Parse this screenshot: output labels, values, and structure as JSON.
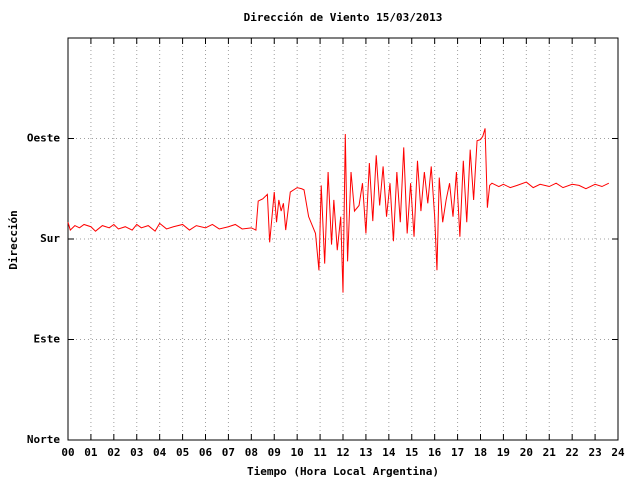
{
  "chart_data": {
    "type": "line",
    "title": "Dirección de Viento 15/03/2013",
    "x_label": "Tiempo (Hora Local Argentina)",
    "y_label": "Dirección",
    "xlim": [
      0,
      24
    ],
    "xticks": [
      {
        "value": 0,
        "label": "00"
      },
      {
        "value": 1,
        "label": "01"
      },
      {
        "value": 2,
        "label": "02"
      },
      {
        "value": 3,
        "label": "03"
      },
      {
        "value": 4,
        "label": "04"
      },
      {
        "value": 5,
        "label": "05"
      },
      {
        "value": 6,
        "label": "06"
      },
      {
        "value": 7,
        "label": "07"
      },
      {
        "value": 8,
        "label": "08"
      },
      {
        "value": 9,
        "label": "09"
      },
      {
        "value": 10,
        "label": "10"
      },
      {
        "value": 11,
        "label": "11"
      },
      {
        "value": 12,
        "label": "12"
      },
      {
        "value": 13,
        "label": "13"
      },
      {
        "value": 14,
        "label": "14"
      },
      {
        "value": 15,
        "label": "15"
      },
      {
        "value": 16,
        "label": "16"
      },
      {
        "value": 17,
        "label": "17"
      },
      {
        "value": 18,
        "label": "18"
      },
      {
        "value": 19,
        "label": "19"
      },
      {
        "value": 20,
        "label": "20"
      },
      {
        "value": 21,
        "label": "21"
      },
      {
        "value": 22,
        "label": "22"
      },
      {
        "value": 23,
        "label": "23"
      },
      {
        "value": 24,
        "label": "24"
      }
    ],
    "ylim": [
      0,
      360
    ],
    "yticks": [
      {
        "value": 0,
        "label": "Norte"
      },
      {
        "value": 90,
        "label": "Este"
      },
      {
        "value": 180,
        "label": "Sur"
      },
      {
        "value": 270,
        "label": "Oeste"
      }
    ],
    "grid": true,
    "x": [
      0,
      0.1,
      0.3,
      0.5,
      0.7,
      1,
      1.2,
      1.5,
      1.8,
      2,
      2.2,
      2.5,
      2.8,
      3,
      3.2,
      3.5,
      3.8,
      4,
      4.3,
      4.6,
      5,
      5.3,
      5.6,
      6,
      6.3,
      6.6,
      7,
      7.3,
      7.6,
      8,
      8.2,
      8.3,
      8.5,
      8.7,
      8.8,
      9,
      9.1,
      9.2,
      9.3,
      9.4,
      9.5,
      9.7,
      10,
      10.2,
      10.3,
      10.5,
      10.8,
      10.95,
      11.05,
      11.2,
      11.35,
      11.5,
      11.6,
      11.75,
      11.9,
      12.0,
      12.1,
      12.2,
      12.35,
      12.5,
      12.7,
      12.85,
      13.0,
      13.15,
      13.3,
      13.45,
      13.6,
      13.75,
      13.9,
      14.05,
      14.2,
      14.35,
      14.5,
      14.65,
      14.8,
      14.95,
      15.1,
      15.25,
      15.4,
      15.55,
      15.7,
      15.85,
      16.0,
      16.1,
      16.2,
      16.35,
      16.5,
      16.65,
      16.8,
      16.95,
      17.1,
      17.25,
      17.4,
      17.55,
      17.7,
      17.85,
      18.0,
      18.1,
      18.2,
      18.3,
      18.4,
      18.5,
      18.8,
      19,
      19.3,
      19.6,
      20,
      20.3,
      20.6,
      21,
      21.3,
      21.6,
      22,
      22.3,
      22.6,
      23,
      23.3,
      23.6
    ],
    "series": [
      {
        "color": "#ff0000",
        "values": [
          195,
          188,
          192,
          190,
          193,
          191,
          187,
          192,
          190,
          193,
          189,
          191,
          188,
          193,
          190,
          192,
          187,
          194,
          189,
          191,
          193,
          188,
          192,
          190,
          193,
          189,
          191,
          193,
          189,
          190,
          188,
          214,
          216,
          220,
          177,
          222,
          195,
          215,
          205,
          212,
          188,
          222,
          226,
          225,
          224,
          200,
          185,
          152,
          228,
          158,
          240,
          175,
          215,
          170,
          200,
          132,
          274,
          160,
          240,
          205,
          210,
          230,
          185,
          248,
          196,
          255,
          210,
          245,
          200,
          230,
          178,
          240,
          195,
          262,
          185,
          230,
          182,
          250,
          205,
          240,
          212,
          245,
          200,
          152,
          235,
          195,
          215,
          230,
          200,
          240,
          182,
          250,
          195,
          260,
          215,
          268,
          269,
          272,
          279,
          208,
          228,
          230,
          227,
          229,
          226,
          228,
          231,
          226,
          229,
          227,
          230,
          226,
          229,
          228,
          225,
          229,
          227,
          230
        ]
      }
    ]
  }
}
